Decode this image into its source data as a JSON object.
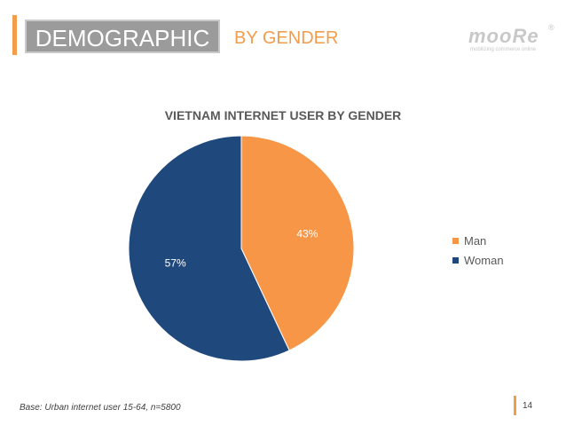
{
  "header": {
    "title": "DEMOGRAPHIC",
    "subtitle": "BY GENDER",
    "logo_text": "mooRe",
    "logo_reg": "®",
    "logo_tagline": "mobilizing commerce online"
  },
  "colors": {
    "accent": "#f39d4c",
    "man": "#f79646",
    "woman": "#1f497d"
  },
  "chart_data": {
    "type": "pie",
    "title": "VIETNAM INTERNET USER BY GENDER",
    "slices": [
      {
        "name": "Man",
        "value": 43,
        "label": "43%"
      },
      {
        "name": "Woman",
        "value": 57,
        "label": "57%"
      }
    ],
    "legend_position": "right"
  },
  "footer": {
    "note": "Base: Urban internet user 15-64, n=5800",
    "page": "14"
  }
}
